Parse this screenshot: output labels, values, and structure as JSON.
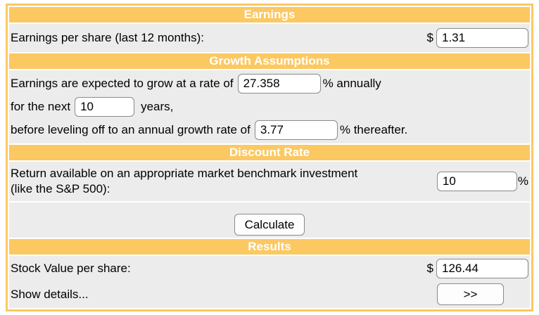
{
  "theme": {
    "accent": "#FCC862",
    "section_bg": "#ECECEC",
    "header_text": "#FFFFFF",
    "input_border": "#8A8A8A",
    "button_bg": "#FDFDFD"
  },
  "sections": {
    "earnings": {
      "header": "Earnings",
      "eps_label": "Earnings per share (last 12 months):",
      "currency": "$",
      "eps_value": "1.31"
    },
    "growth": {
      "header": "Growth Assumptions",
      "line1_before": "Earnings are expected to grow at a rate of",
      "growth_rate_value": "27.358",
      "line1_after": "% annually",
      "line2_before": "for the next",
      "years_value": "10",
      "line2_after": "years,",
      "line3_before": "before leveling off to an annual growth rate of",
      "terminal_rate_value": "3.77",
      "line3_after": "% thereafter."
    },
    "discount": {
      "header": "Discount Rate",
      "label_line1": "Return available on an appropriate market benchmark investment",
      "label_line2": "(like the S&P 500):",
      "rate_value": "10",
      "percent": "%"
    },
    "calculate": {
      "button_label": "Calculate"
    },
    "results": {
      "header": "Results",
      "stock_value_label": "Stock Value per share:",
      "currency": "$",
      "stock_value": "126.44",
      "show_details_label": "Show details...",
      "details_button_label": ">>"
    }
  }
}
